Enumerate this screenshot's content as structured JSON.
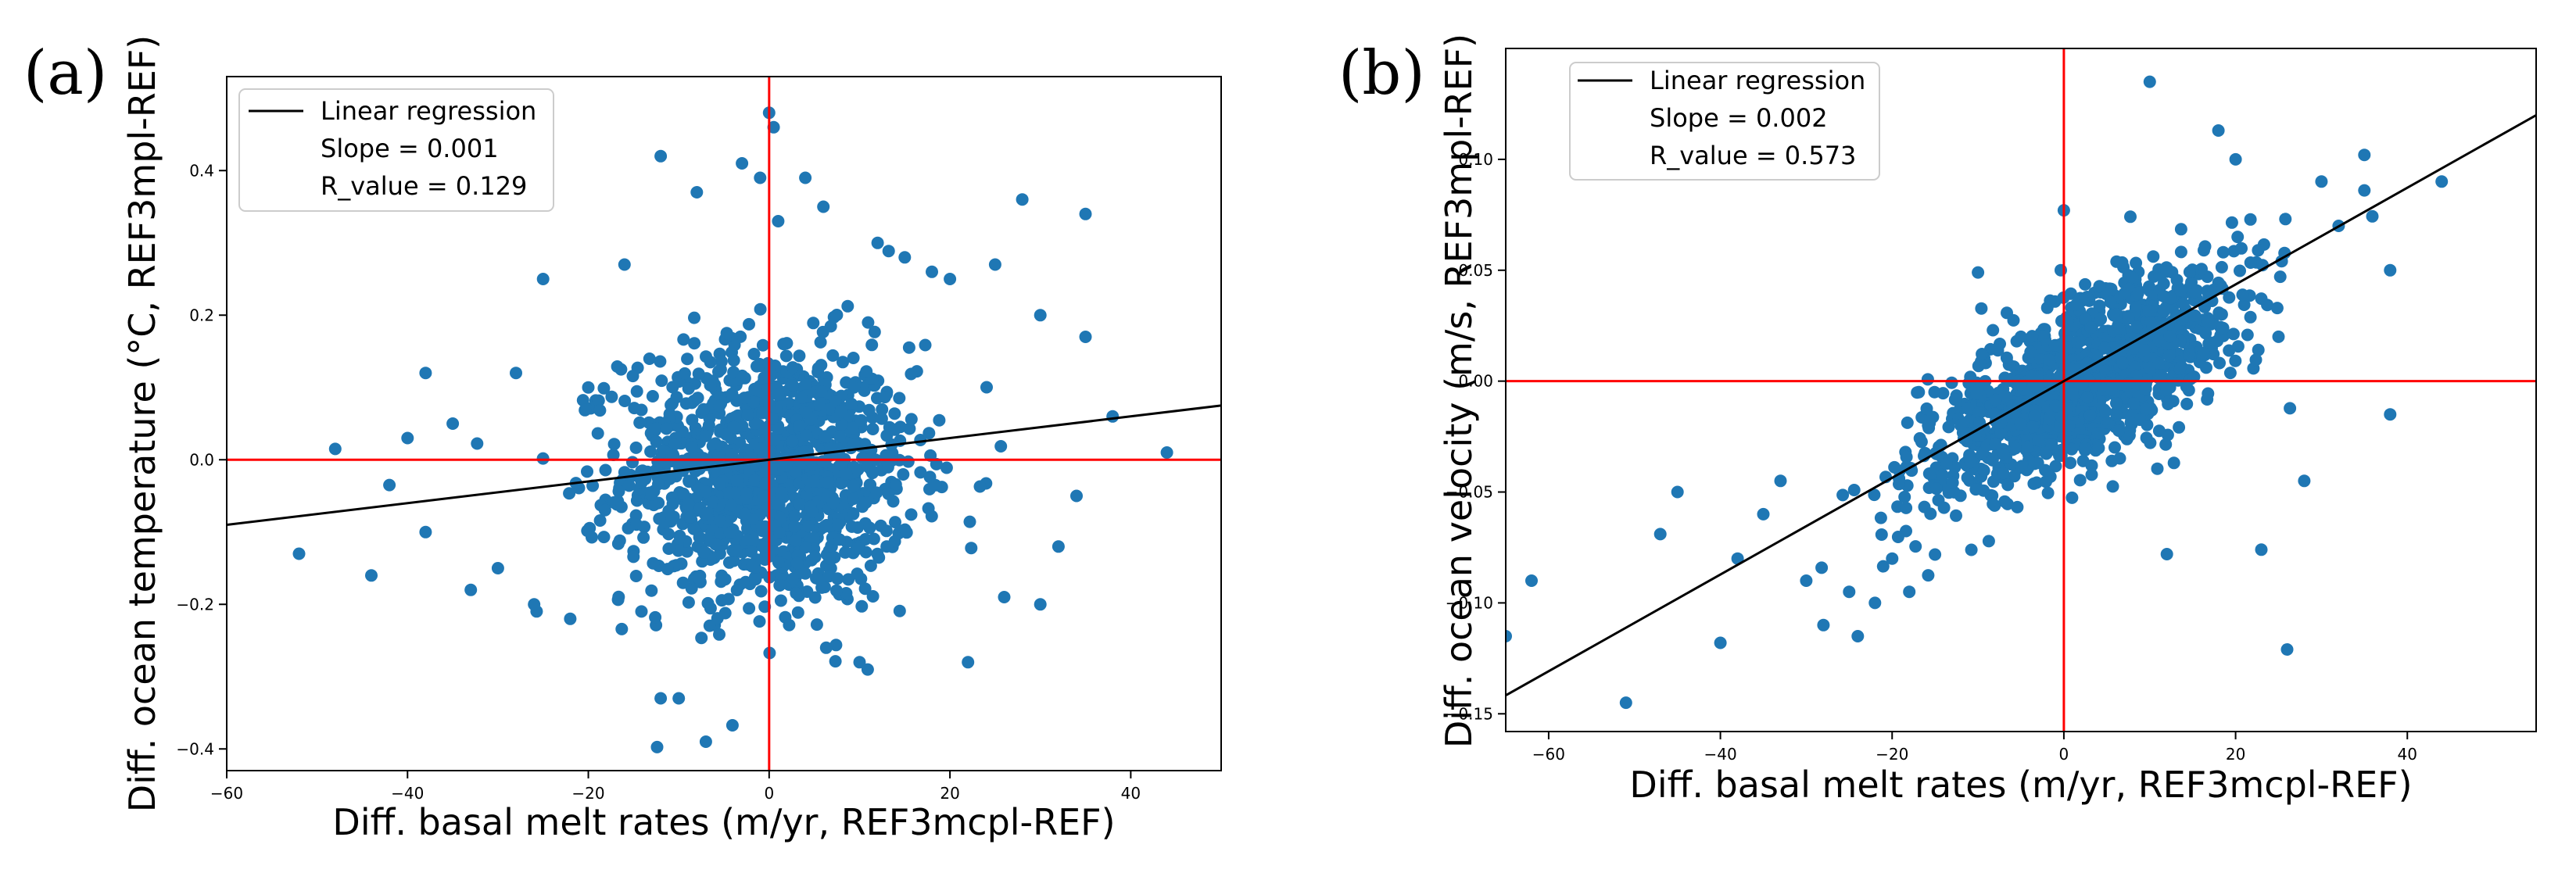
{
  "panels": [
    {
      "label": "(a)",
      "chart_data": {
        "type": "scatter",
        "xlabel": "Diff. basal melt rates (m/yr, REF3mcpl-REF)",
        "ylabel": "Diff. ocean temperature (°C, REF3mpl-REF)",
        "xlim": [
          -60,
          50
        ],
        "ylim": [
          -0.43,
          0.53
        ],
        "xticks": [
          -60,
          -40,
          -20,
          0,
          20,
          40
        ],
        "yticks": [
          -0.4,
          -0.2,
          0.0,
          0.2,
          0.4
        ],
        "ytick_labels": [
          "−0.4",
          "−0.2",
          "0.0",
          "0.2",
          "0.4"
        ],
        "xtick_labels": [
          "−60",
          "−40",
          "−20",
          "0",
          "20",
          "40"
        ],
        "grid": false,
        "legend": {
          "position": "top-left",
          "entries": [
            "Linear regression",
            "Slope = 0.001",
            "R_value = 0.129"
          ]
        },
        "regression": {
          "slope": 0.0015,
          "intercept": 0.0
        },
        "reference_lines": {
          "x": 0,
          "y": 0,
          "color": "#ff0000"
        },
        "point_color": "#1f77b4",
        "line_color": "#000000",
        "scatter": {
          "n_core": 1300,
          "center": [
            0,
            -0.02
          ],
          "sd": [
            8,
            0.09
          ],
          "sparse_points": [
            [
              -52,
              -0.13
            ],
            [
              -48,
              0.015
            ],
            [
              -44,
              -0.16
            ],
            [
              -42,
              -0.035
            ],
            [
              -40,
              0.03
            ],
            [
              -38,
              0.12
            ],
            [
              -38,
              -0.1
            ],
            [
              -35,
              0.05
            ],
            [
              -33,
              -0.18
            ],
            [
              -30,
              -0.15
            ],
            [
              -28,
              0.12
            ],
            [
              -25,
              0.25
            ],
            [
              -26,
              -0.2
            ],
            [
              -22,
              -0.22
            ],
            [
              -20,
              0.1
            ],
            [
              -12,
              0.42
            ],
            [
              -12,
              -0.33
            ],
            [
              -10,
              -0.33
            ],
            [
              -7,
              -0.39
            ],
            [
              -3,
              0.41
            ],
            [
              -1,
              0.39
            ],
            [
              0,
              0.48
            ],
            [
              0.5,
              0.46
            ],
            [
              1,
              0.33
            ],
            [
              4,
              0.39
            ],
            [
              10,
              -0.28
            ],
            [
              12,
              0.3
            ],
            [
              18,
              0.26
            ],
            [
              20,
              0.25
            ],
            [
              22,
              -0.28
            ],
            [
              25,
              0.27
            ],
            [
              28,
              0.36
            ],
            [
              30,
              0.2
            ],
            [
              35,
              0.34
            ],
            [
              35,
              0.17
            ],
            [
              38,
              0.06
            ],
            [
              44,
              0.01
            ],
            [
              34,
              -0.05
            ],
            [
              32,
              -0.12
            ],
            [
              30,
              -0.2
            ],
            [
              26,
              -0.19
            ],
            [
              -16,
              0.27
            ],
            [
              -8,
              0.37
            ],
            [
              6,
              0.35
            ],
            [
              15,
              0.28
            ]
          ]
        }
      }
    },
    {
      "label": "(b)",
      "chart_data": {
        "type": "scatter",
        "xlabel": "Diff. basal melt rates (m/yr, REF3mcpl-REF)",
        "ylabel": "Diff. ocean velocity (m/s, REF3mpl-REF)",
        "xlim": [
          -65,
          55
        ],
        "ylim": [
          -0.158,
          0.15
        ],
        "xticks": [
          -60,
          -40,
          -20,
          0,
          20,
          40
        ],
        "yticks": [
          -0.15,
          -0.1,
          -0.05,
          0.0,
          0.05,
          0.1
        ],
        "ytick_labels": [
          "−0.15",
          "−0.10",
          "−0.05",
          "0.00",
          "0.05",
          "0.10"
        ],
        "xtick_labels": [
          "−60",
          "−40",
          "−20",
          "0",
          "20",
          "40"
        ],
        "grid": false,
        "legend": {
          "position": "top-left",
          "entries": [
            "Linear regression",
            "Slope = 0.002",
            "R_value = 0.573"
          ]
        },
        "regression": {
          "slope": 0.00218,
          "intercept": 0.0
        },
        "reference_lines": {
          "x": 0,
          "y": 0,
          "color": "#ff0000"
        },
        "point_color": "#1f77b4",
        "line_color": "#000000",
        "scatter": {
          "n_core": 1300,
          "center": [
            2,
            0.0
          ],
          "sd": [
            9,
            0.025
          ],
          "corr": 0.7,
          "sparse_points": [
            [
              -65,
              -0.115
            ],
            [
              -62,
              -0.09
            ],
            [
              -51,
              -0.145
            ],
            [
              -47,
              -0.069
            ],
            [
              -45,
              -0.05
            ],
            [
              -40,
              -0.118
            ],
            [
              -38,
              -0.08
            ],
            [
              -35,
              -0.06
            ],
            [
              -33,
              -0.045
            ],
            [
              -30,
              -0.09
            ],
            [
              -28,
              -0.11
            ],
            [
              -25,
              -0.095
            ],
            [
              -24,
              -0.115
            ],
            [
              -22,
              -0.1
            ],
            [
              -20,
              -0.08
            ],
            [
              -18,
              -0.095
            ],
            [
              -10,
              0.049
            ],
            [
              -5,
              0.02
            ],
            [
              0,
              0.077
            ],
            [
              10,
              0.135
            ],
            [
              12,
              -0.078
            ],
            [
              18,
              0.113
            ],
            [
              20,
              0.1
            ],
            [
              23,
              -0.076
            ],
            [
              26,
              -0.121
            ],
            [
              30,
              0.09
            ],
            [
              35,
              0.102
            ],
            [
              35,
              0.086
            ],
            [
              38,
              0.05
            ],
            [
              38,
              -0.015
            ],
            [
              44,
              0.09
            ],
            [
              32,
              0.07
            ],
            [
              28,
              -0.045
            ],
            [
              25,
              0.02
            ],
            [
              -12,
              -0.02
            ]
          ]
        }
      }
    }
  ]
}
